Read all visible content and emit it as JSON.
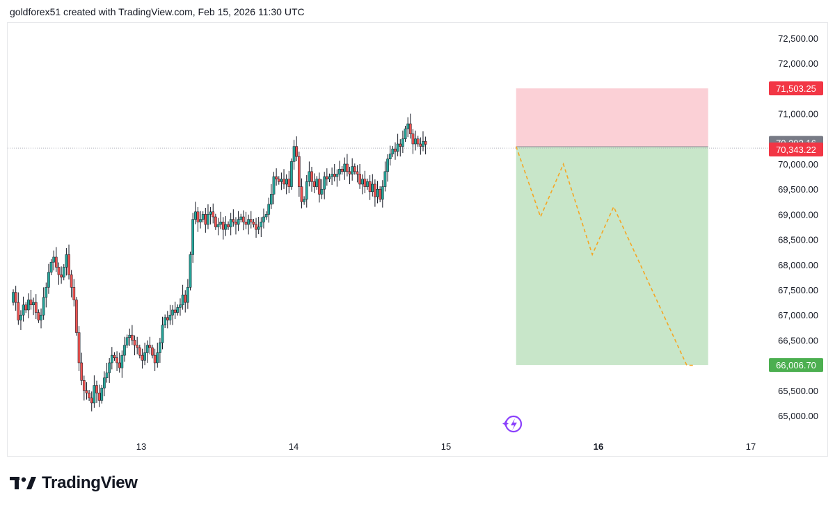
{
  "header": {
    "attribution": "goldforex51 created with TradingView.com, Feb 15, 2026 11:30 UTC"
  },
  "footer": {
    "brand": "TradingView",
    "logo_icon": "tradingview-logo-icon"
  },
  "colors": {
    "up": "#26a69a",
    "down": "#ef5350",
    "wick": "#131722",
    "stop_zone": "#fbd0d6",
    "target_zone": "#c8e6c9",
    "stop_label": "#f23645",
    "entry_label": "#f23645",
    "last_price_label": "#787b86",
    "target_label": "#4caf50",
    "projection": "#f5a623",
    "grid": "#ffffff",
    "axis_text": "#131722"
  },
  "chart_data": {
    "type": "candlestick",
    "title": "",
    "ylim": [
      64700,
      72800
    ],
    "y_ticks": [
      "72,500.00",
      "72,000.00",
      "71,000.00",
      "70,000.00",
      "69,500.00",
      "69,000.00",
      "68,500.00",
      "68,000.00",
      "67,500.00",
      "67,000.00",
      "66,500.00",
      "65,500.00",
      "65,000.00"
    ],
    "y_tick_values": [
      72500,
      72000,
      71000,
      70000,
      69500,
      69000,
      68500,
      68000,
      67500,
      67000,
      66500,
      65500,
      65000
    ],
    "x_ticks": [
      {
        "label": "13",
        "value": 13,
        "bold": false
      },
      {
        "label": "14",
        "value": 14,
        "bold": false
      },
      {
        "label": "15",
        "value": 15,
        "bold": false
      },
      {
        "label": "16",
        "value": 16,
        "bold": true
      },
      {
        "label": "17",
        "value": 17,
        "bold": false
      }
    ],
    "xlim": [
      12.15,
      17.5
    ],
    "candle_start": 12.16,
    "candle_step": 0.0166,
    "seed_close": 67250,
    "closes": [
      67450,
      67250,
      66900,
      67000,
      67200,
      67100,
      67300,
      67200,
      67250,
      67050,
      66900,
      67000,
      67350,
      67550,
      67850,
      68050,
      68150,
      67950,
      67800,
      67750,
      67950,
      68200,
      67800,
      67550,
      67300,
      66650,
      66050,
      65700,
      65500,
      65450,
      65350,
      65250,
      65600,
      65450,
      65300,
      65550,
      65750,
      65850,
      66050,
      66200,
      66150,
      66050,
      65950,
      66200,
      66400,
      66550,
      66600,
      66500,
      66400,
      66350,
      66200,
      66100,
      66250,
      66400,
      66350,
      66200,
      66050,
      66250,
      66450,
      66800,
      66950,
      66900,
      67000,
      67100,
      67050,
      67150,
      67200,
      67400,
      67250,
      67550,
      68200,
      68900,
      69050,
      68850,
      68900,
      69000,
      68800,
      69000,
      69050,
      68950,
      68750,
      68800,
      68850,
      68700,
      68800,
      68750,
      68900,
      68850,
      68800,
      68900,
      68950,
      68850,
      68800,
      68900,
      68850,
      68800,
      68700,
      68750,
      68850,
      68950,
      69000,
      69200,
      69400,
      69750,
      69700,
      69650,
      69700,
      69600,
      69700,
      69550,
      70050,
      70350,
      70150,
      69550,
      69250,
      69300,
      69650,
      69850,
      69650,
      69550,
      69700,
      69400,
      69500,
      69750,
      69700,
      69750,
      69800,
      69750,
      69800,
      69900,
      69850,
      70000,
      69850,
      69800,
      69950,
      69850,
      69800,
      69600,
      69700,
      69550,
      69650,
      69450,
      69600,
      69350,
      69500,
      69300,
      69550,
      69850,
      70100,
      70200,
      70300,
      70250,
      70400,
      70350,
      70500,
      70700,
      70800,
      70600,
      70400,
      70500,
      70400,
      70350,
      70450,
      70392
    ],
    "entry": 70343.22,
    "stop": 71503.25,
    "target": 66006.7,
    "last_price": 70392.16,
    "position_x": [
      15.46,
      16.72
    ],
    "price_labels": [
      {
        "text": "71,503.25",
        "value": 71503.25,
        "role": "stop"
      },
      {
        "text": "70,392.16",
        "value": 70392.16,
        "role": "last"
      },
      {
        "text": "70,343.22",
        "value": 70343.22,
        "role": "entry"
      },
      {
        "text": "66,006.70",
        "value": 66006.7,
        "role": "target"
      }
    ],
    "projection": [
      {
        "x": 15.46,
        "y": 70350
      },
      {
        "x": 15.62,
        "y": 68950
      },
      {
        "x": 15.77,
        "y": 70000
      },
      {
        "x": 15.96,
        "y": 68200
      },
      {
        "x": 16.1,
        "y": 69150
      },
      {
        "x": 16.58,
        "y": 66000
      },
      {
        "x": 16.62,
        "y": 66000
      }
    ],
    "grid": false,
    "event_icon": "lightning-event-icon"
  }
}
